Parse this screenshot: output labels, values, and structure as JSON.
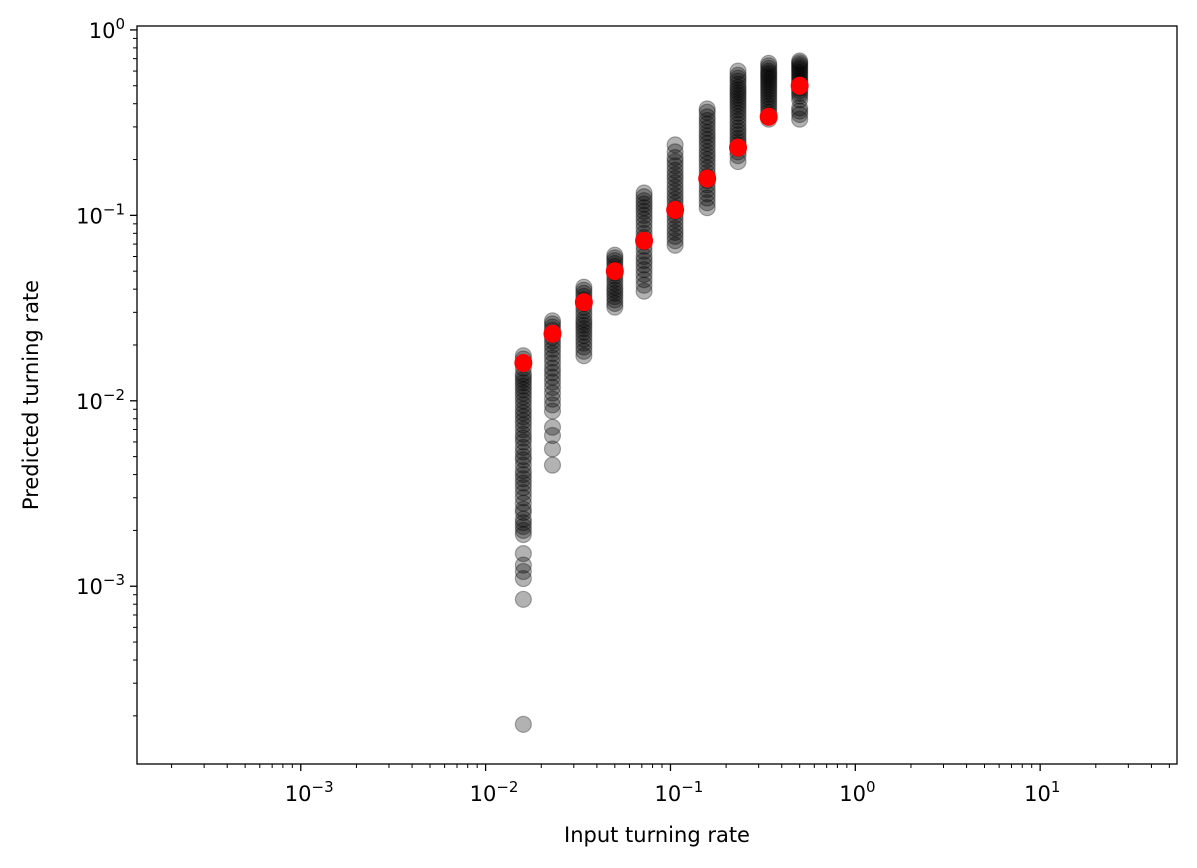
{
  "chart_data": {
    "type": "scatter",
    "xlabel": "Input turning rate",
    "ylabel": "Predicted turning rate",
    "x_scale": "log",
    "y_scale": "log",
    "xlim": [
      0.00013,
      55
    ],
    "ylim": [
      0.00011,
      1.05
    ],
    "grid": false,
    "x_ticks": [
      {
        "base": "10",
        "exp": "−3",
        "value": 0.001
      },
      {
        "base": "10",
        "exp": "−2",
        "value": 0.01
      },
      {
        "base": "10",
        "exp": "−1",
        "value": 0.1
      },
      {
        "base": "10",
        "exp": "0",
        "value": 1
      },
      {
        "base": "10",
        "exp": "1",
        "value": 10
      }
    ],
    "y_ticks": [
      {
        "base": "10",
        "exp": "−3",
        "value": 0.001
      },
      {
        "base": "10",
        "exp": "−2",
        "value": 0.01
      },
      {
        "base": "10",
        "exp": "−1",
        "value": 0.1
      },
      {
        "base": "10",
        "exp": "0",
        "value": 1
      }
    ],
    "series": [
      {
        "color": "#000000",
        "alpha": 0.3,
        "marker": "circle",
        "columns": [
          {
            "x": 0.016,
            "y": [
              0.00018,
              0.00085,
              0.0011,
              0.0012,
              0.0013,
              0.0015,
              0.0019,
              0.002,
              0.0021,
              0.0022,
              0.0023,
              0.0025,
              0.0026,
              0.0028,
              0.003,
              0.0032,
              0.0034,
              0.0036,
              0.0038,
              0.004,
              0.0042,
              0.0045,
              0.0048,
              0.005,
              0.0053,
              0.0056,
              0.006,
              0.0063,
              0.0066,
              0.007,
              0.0074,
              0.0078,
              0.0082,
              0.0086,
              0.009,
              0.0095,
              0.01,
              0.0105,
              0.011,
              0.0115,
              0.012,
              0.0125,
              0.013,
              0.0135,
              0.014,
              0.015,
              0.016,
              0.0168,
              0.0175
            ]
          },
          {
            "x": 0.023,
            "y": [
              0.0045,
              0.0055,
              0.0065,
              0.0072,
              0.0088,
              0.0095,
              0.0102,
              0.011,
              0.0118,
              0.0126,
              0.0134,
              0.0142,
              0.015,
              0.016,
              0.017,
              0.018,
              0.019,
              0.02,
              0.021,
              0.022,
              0.023,
              0.024,
              0.025,
              0.026,
              0.027
            ]
          },
          {
            "x": 0.034,
            "y": [
              0.0175,
              0.0185,
              0.0195,
              0.0205,
              0.0215,
              0.0225,
              0.0235,
              0.0245,
              0.0255,
              0.0265,
              0.0275,
              0.029,
              0.0305,
              0.032,
              0.0335,
              0.035,
              0.0365,
              0.038,
              0.0395,
              0.041
            ]
          },
          {
            "x": 0.05,
            "y": [
              0.032,
              0.0335,
              0.035,
              0.0365,
              0.038,
              0.0395,
              0.041,
              0.043,
              0.045,
              0.047,
              0.049,
              0.051,
              0.053,
              0.055,
              0.057,
              0.059,
              0.061
            ]
          },
          {
            "x": 0.072,
            "y": [
              0.039,
              0.042,
              0.045,
              0.048,
              0.051,
              0.054,
              0.057,
              0.06,
              0.064,
              0.068,
              0.072,
              0.076,
              0.08,
              0.085,
              0.09,
              0.095,
              0.1,
              0.105,
              0.11,
              0.115,
              0.12,
              0.126,
              0.132
            ]
          },
          {
            "x": 0.106,
            "y": [
              0.069,
              0.073,
              0.077,
              0.081,
              0.085,
              0.09,
              0.095,
              0.1,
              0.105,
              0.11,
              0.116,
              0.122,
              0.128,
              0.135,
              0.142,
              0.15,
              0.158,
              0.166,
              0.175,
              0.185,
              0.195,
              0.205,
              0.22,
              0.24
            ]
          },
          {
            "x": 0.158,
            "y": [
              0.11,
              0.117,
              0.124,
              0.131,
              0.138,
              0.146,
              0.154,
              0.162,
              0.17,
              0.18,
              0.19,
              0.2,
              0.21,
              0.22,
              0.232,
              0.244,
              0.256,
              0.268,
              0.28,
              0.295,
              0.31,
              0.325,
              0.34,
              0.36,
              0.375
            ]
          },
          {
            "x": 0.232,
            "y": [
              0.195,
              0.21,
              0.22,
              0.23,
              0.24,
              0.25,
              0.26,
              0.272,
              0.284,
              0.296,
              0.31,
              0.325,
              0.34,
              0.355,
              0.37,
              0.385,
              0.4,
              0.415,
              0.43,
              0.445,
              0.46,
              0.475,
              0.49,
              0.51,
              0.53,
              0.55,
              0.57,
              0.6
            ]
          },
          {
            "x": 0.34,
            "y": [
              0.33,
              0.345,
              0.36,
              0.375,
              0.39,
              0.405,
              0.42,
              0.435,
              0.45,
              0.465,
              0.48,
              0.495,
              0.51,
              0.525,
              0.54,
              0.555,
              0.57,
              0.585,
              0.6,
              0.62,
              0.64,
              0.66
            ]
          },
          {
            "x": 0.5,
            "y": [
              0.33,
              0.35,
              0.365,
              0.38,
              0.42,
              0.44,
              0.455,
              0.47,
              0.485,
              0.5,
              0.515,
              0.53,
              0.545,
              0.56,
              0.575,
              0.59,
              0.605,
              0.62,
              0.635,
              0.65,
              0.665,
              0.68
            ]
          }
        ]
      },
      {
        "color": "#ff0000",
        "alpha": 1,
        "marker": "circle",
        "x": [
          0.016,
          0.023,
          0.034,
          0.05,
          0.072,
          0.106,
          0.158,
          0.232,
          0.34,
          0.5
        ],
        "y": [
          0.016,
          0.023,
          0.034,
          0.05,
          0.073,
          0.107,
          0.158,
          0.232,
          0.34,
          0.5
        ]
      }
    ]
  }
}
